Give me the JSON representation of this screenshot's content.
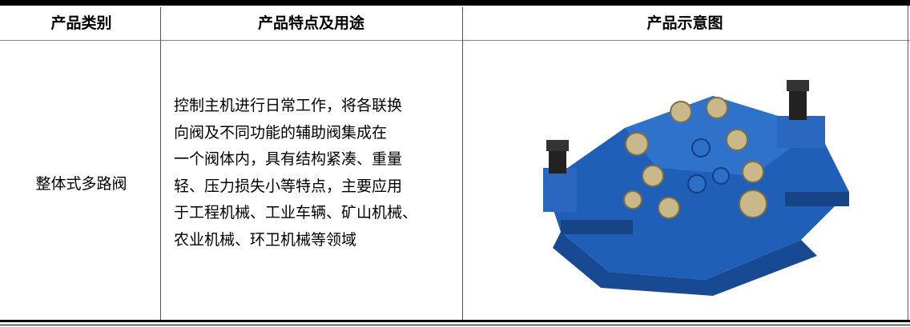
{
  "table": {
    "header": [
      "产品类别",
      "产品特点及用途",
      "产品示意图"
    ],
    "rows": [
      {
        "category": "整体式多路阀",
        "description": [
          "控制主机进行日常工作，将各联换",
          "向阀及不同功能的辅助阀集成在",
          "一个阀体内，具有结构紧凑、重量",
          "轻、压力损失小等特点，主要应用",
          "于工程机械、工业车辆、矿山机械、",
          "农业机械、环卫机械等领域"
        ]
      }
    ]
  }
}
